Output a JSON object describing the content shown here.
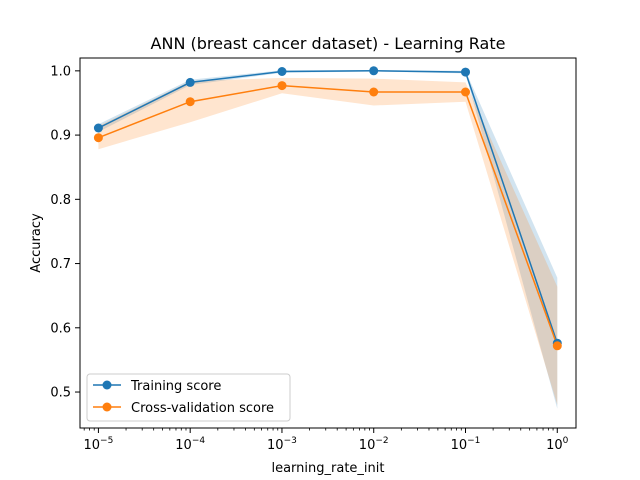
{
  "chart_data": {
    "type": "line",
    "title": "ANN (breast cancer dataset) - Learning Rate",
    "xlabel": "learning_rate_init",
    "ylabel": "Accuracy",
    "xscale": "log",
    "x": [
      1e-05,
      0.0001,
      0.001,
      0.01,
      0.1,
      1
    ],
    "xticks": [
      {
        "base": "10",
        "exp": "−5"
      },
      {
        "base": "10",
        "exp": "−4"
      },
      {
        "base": "10",
        "exp": "−3"
      },
      {
        "base": "10",
        "exp": "−2"
      },
      {
        "base": "10",
        "exp": "−1"
      },
      {
        "base": "10",
        "exp": "0"
      }
    ],
    "yticks": [
      "0.5",
      "0.6",
      "0.7",
      "0.8",
      "0.9",
      "1.0"
    ],
    "xlim": [
      6.3e-06,
      1.6
    ],
    "ylim": [
      0.444,
      1.02
    ],
    "grid": false,
    "legend_position": "lower-left",
    "series": [
      {
        "name": "Training score",
        "color": "#1f77b4",
        "values": [
          0.911,
          0.982,
          0.999,
          1.0,
          0.998,
          0.576
        ],
        "lower": [
          0.905,
          0.978,
          0.997,
          0.999,
          0.996,
          0.474
        ],
        "upper": [
          0.917,
          0.986,
          1.001,
          1.001,
          1.0,
          0.678
        ]
      },
      {
        "name": "Cross-validation score",
        "color": "#ff7f0e",
        "values": [
          0.896,
          0.952,
          0.977,
          0.967,
          0.967,
          0.572
        ],
        "lower": [
          0.878,
          0.92,
          0.965,
          0.946,
          0.952,
          0.48
        ],
        "upper": [
          0.914,
          0.984,
          0.989,
          0.988,
          0.982,
          0.664
        ]
      }
    ]
  }
}
